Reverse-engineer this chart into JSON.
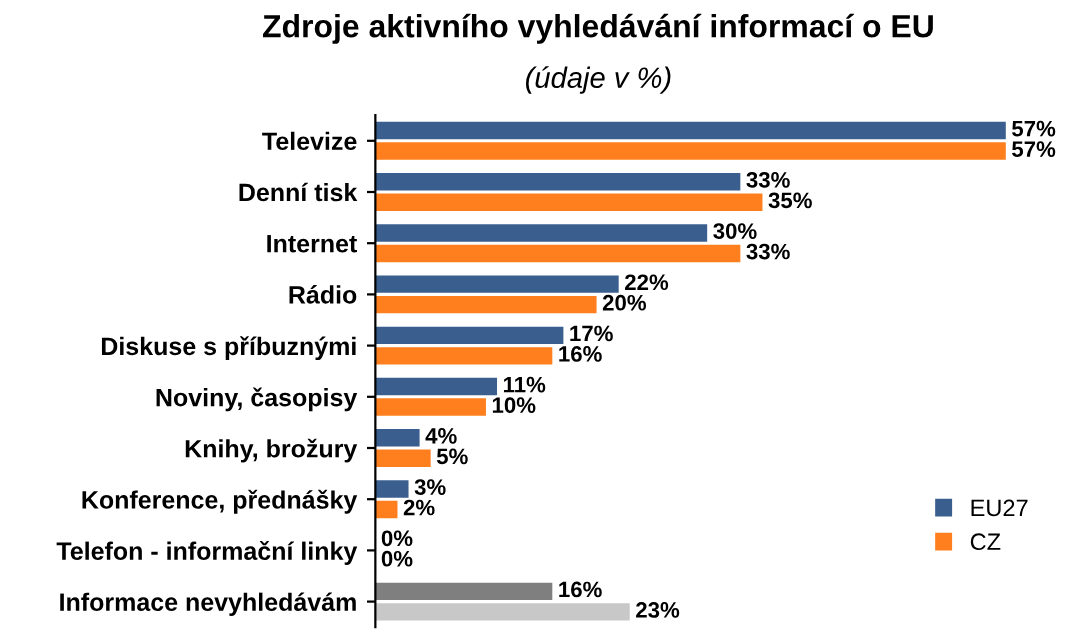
{
  "chart_data": {
    "type": "bar",
    "orientation": "horizontal",
    "title": "Zdroje aktivního vyhledávání informací o EU",
    "subtitle": "(údaje v %)",
    "categories": [
      "Televize",
      "Denní tisk",
      "Internet",
      "Rádio",
      "Diskuse s příbuznými",
      "Noviny, časopisy",
      "Knihy, brožury",
      "Konference, přednášky",
      "Telefon - informační linky",
      "Informace nevyhledávám"
    ],
    "series": [
      {
        "name": "EU27",
        "color": "#3a5f8f",
        "colors": [
          "#3a5f8f",
          "#3a5f8f",
          "#3a5f8f",
          "#3a5f8f",
          "#3a5f8f",
          "#3a5f8f",
          "#3a5f8f",
          "#3a5f8f",
          "#3a5f8f",
          "#7f7f7f"
        ],
        "values": [
          57,
          33,
          30,
          22,
          17,
          11,
          4,
          3,
          0,
          16
        ],
        "value_labels": [
          "57%",
          "33%",
          "30%",
          "22%",
          "17%",
          "11%",
          "4%",
          "3%",
          "0%",
          "16%"
        ]
      },
      {
        "name": "CZ",
        "color": "#ff7f1e",
        "colors": [
          "#ff7f1e",
          "#ff7f1e",
          "#ff7f1e",
          "#ff7f1e",
          "#ff7f1e",
          "#ff7f1e",
          "#ff7f1e",
          "#ff7f1e",
          "#ff7f1e",
          "#c8c8c8"
        ],
        "values": [
          57,
          35,
          33,
          20,
          16,
          10,
          5,
          2,
          0,
          23
        ],
        "value_labels": [
          "57%",
          "35%",
          "33%",
          "20%",
          "16%",
          "10%",
          "5%",
          "2%",
          "0%",
          "23%"
        ]
      }
    ],
    "legend": "bottom right"
  }
}
